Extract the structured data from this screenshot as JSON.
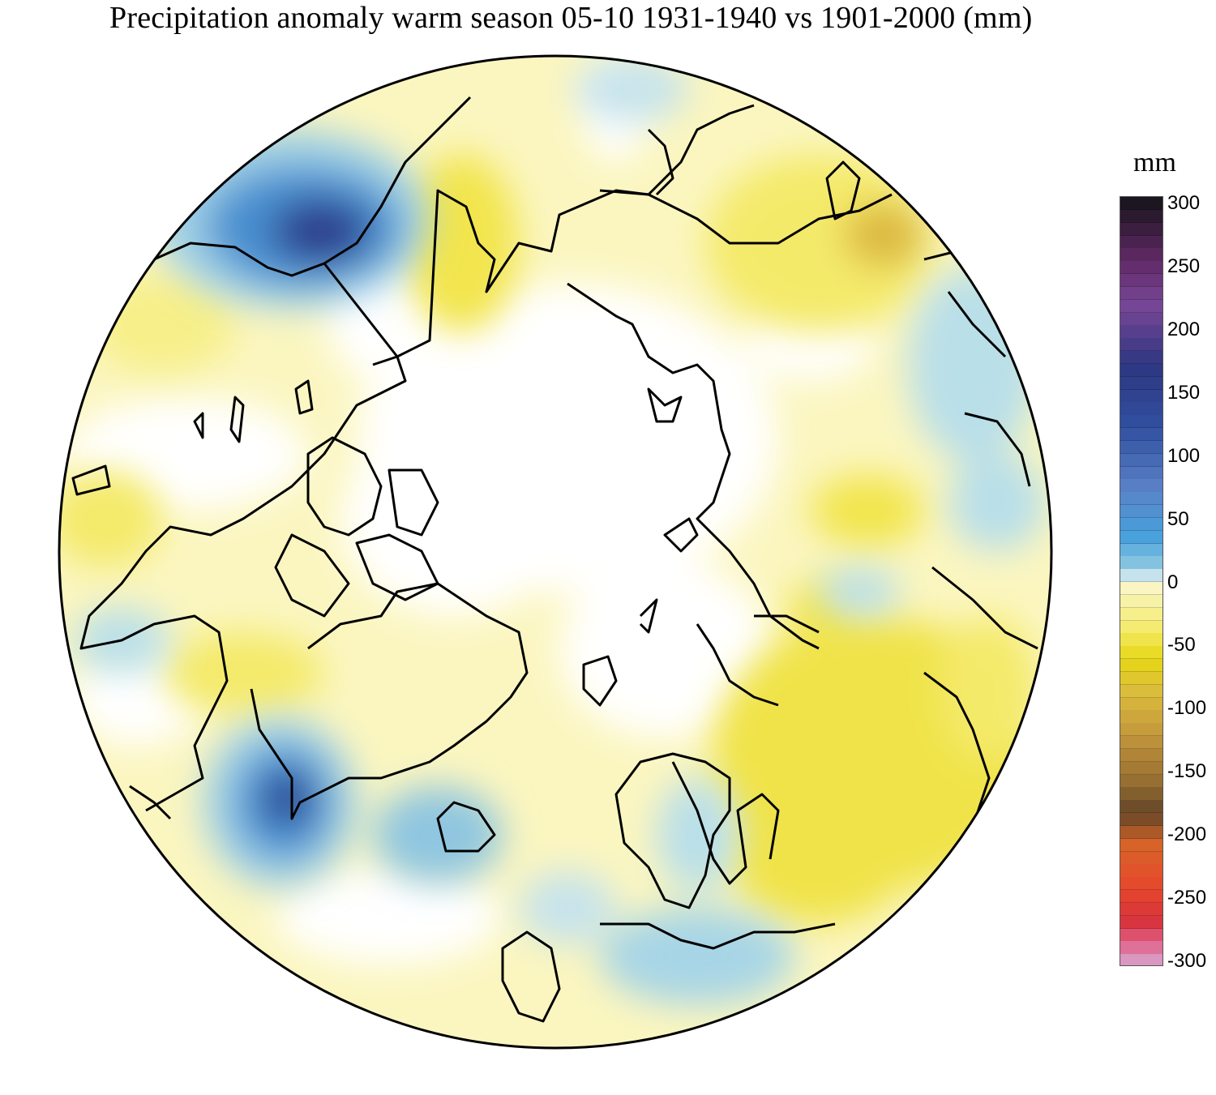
{
  "title": "Precipitation anomaly warm season 05-10 1931-1940 vs 1901-2000 (mm)",
  "legend": {
    "unit": "mm",
    "ticks": [
      "300",
      "250",
      "200",
      "150",
      "100",
      "50",
      "0",
      "-50",
      "-100",
      "-150",
      "-200",
      "-250",
      "-300"
    ],
    "range": [
      -300,
      300
    ]
  },
  "colors": {
    "wet_strong": "#2b2f7a",
    "wet": "#4a8fd0",
    "wet_light": "#cfe6ee",
    "neutral": "#ffffff",
    "dry_light": "#fbf6bf",
    "dry": "#f1e552",
    "dry_strong": "#c49a33",
    "coast": "#000000"
  }
}
